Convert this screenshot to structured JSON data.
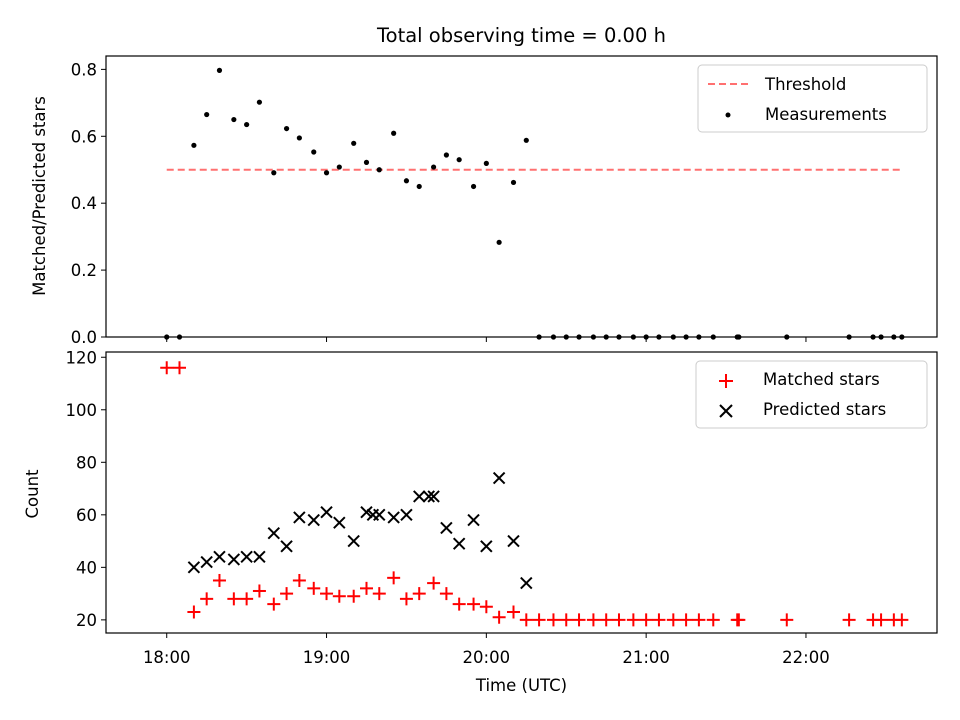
{
  "chart_data": [
    {
      "type": "scatter",
      "title": "Total observing time = 0.00 h",
      "xlabel": "",
      "ylabel": "Matched/Predicted stars",
      "xlim": [
        17.62,
        22.82
      ],
      "ylim": [
        0.0,
        0.84
      ],
      "yticks": [
        "0.0",
        "0.2",
        "0.4",
        "0.6",
        "0.8"
      ],
      "legend": {
        "placement": "top-right",
        "entries": [
          "Threshold",
          "Measurements"
        ]
      },
      "threshold": {
        "name": "Threshold",
        "value": 0.5,
        "x_range": [
          18.0,
          22.6
        ],
        "color": "#ff7070"
      },
      "series": [
        {
          "name": "Measurements",
          "color": "#000000",
          "x": [
            18.0,
            18.08,
            18.17,
            18.25,
            18.33,
            18.42,
            18.5,
            18.58,
            18.67,
            18.75,
            18.83,
            18.92,
            19.0,
            19.08,
            19.17,
            19.25,
            19.33,
            19.42,
            19.5,
            19.58,
            19.67,
            19.75,
            19.83,
            19.92,
            20.0,
            20.08,
            20.17,
            20.25,
            20.33,
            20.42,
            20.5,
            20.58,
            20.67,
            20.75,
            20.83,
            20.92,
            21.0,
            21.08,
            21.17,
            21.25,
            21.33,
            21.42,
            21.57,
            21.58,
            21.88,
            22.27,
            22.42,
            22.47,
            22.55,
            22.6
          ],
          "y": [
            0.0,
            0.0,
            0.573,
            0.665,
            0.797,
            0.65,
            0.635,
            0.702,
            0.491,
            0.623,
            0.595,
            0.553,
            0.491,
            0.508,
            0.579,
            0.522,
            0.5,
            0.609,
            0.467,
            0.45,
            0.508,
            0.544,
            0.53,
            0.45,
            0.519,
            0.283,
            0.462,
            0.588,
            0.0,
            0.0,
            0.0,
            0.0,
            0.0,
            0.0,
            0.0,
            0.0,
            0.0,
            0.0,
            0.0,
            0.0,
            0.0,
            0.0,
            0.0,
            0.0,
            0.0,
            0.0,
            0.0,
            0.0,
            0.0,
            0.0
          ]
        }
      ]
    },
    {
      "type": "scatter",
      "title": "",
      "xlabel": "Time (UTC)",
      "ylabel": "Count",
      "xlim": [
        17.62,
        22.82
      ],
      "ylim": [
        15.0,
        122.0
      ],
      "yticks": [
        "20",
        "40",
        "60",
        "80",
        "100",
        "120"
      ],
      "xticks": [
        "18:00",
        "19:00",
        "20:00",
        "21:00",
        "22:00"
      ],
      "legend": {
        "placement": "top-right",
        "entries": [
          "Matched stars",
          "Predicted stars"
        ]
      },
      "series": [
        {
          "name": "Matched stars",
          "marker": "plus",
          "color": "#ff0000",
          "x": [
            18.0,
            18.08,
            18.17,
            18.25,
            18.33,
            18.42,
            18.5,
            18.58,
            18.67,
            18.75,
            18.83,
            18.92,
            19.0,
            19.08,
            19.17,
            19.25,
            19.33,
            19.42,
            19.5,
            19.58,
            19.67,
            19.75,
            19.83,
            19.92,
            20.0,
            20.08,
            20.17,
            20.25,
            20.33,
            20.42,
            20.5,
            20.58,
            20.67,
            20.75,
            20.83,
            20.92,
            21.0,
            21.08,
            21.17,
            21.25,
            21.33,
            21.42,
            21.57,
            21.58,
            21.88,
            22.27,
            22.42,
            22.47,
            22.55,
            22.6
          ],
          "y": [
            116,
            116,
            23,
            28,
            35,
            28,
            28,
            31,
            26,
            30,
            35,
            32,
            30,
            29,
            29,
            32,
            30,
            36,
            28,
            30,
            34,
            30,
            26,
            26,
            25,
            21,
            23,
            20,
            20,
            20,
            20,
            20,
            20,
            20,
            20,
            20,
            20,
            20,
            20,
            20,
            20,
            20,
            20,
            20,
            20,
            20,
            20,
            20,
            20,
            20
          ]
        },
        {
          "name": "Predicted stars",
          "marker": "x",
          "color": "#000000",
          "x": [
            18.17,
            18.25,
            18.33,
            18.42,
            18.5,
            18.58,
            18.67,
            18.75,
            18.83,
            18.92,
            19.0,
            19.08,
            19.17,
            19.25,
            19.29,
            19.33,
            19.42,
            19.5,
            19.58,
            19.64,
            19.67,
            19.75,
            19.83,
            19.92,
            20.0,
            20.08,
            20.17,
            20.25
          ],
          "y": [
            40,
            42,
            44,
            43,
            44,
            44,
            53,
            48,
            59,
            58,
            61,
            57,
            50,
            61,
            60,
            60,
            59,
            60,
            67,
            67,
            67,
            55,
            49,
            58,
            48,
            74,
            50,
            34
          ]
        }
      ]
    }
  ]
}
